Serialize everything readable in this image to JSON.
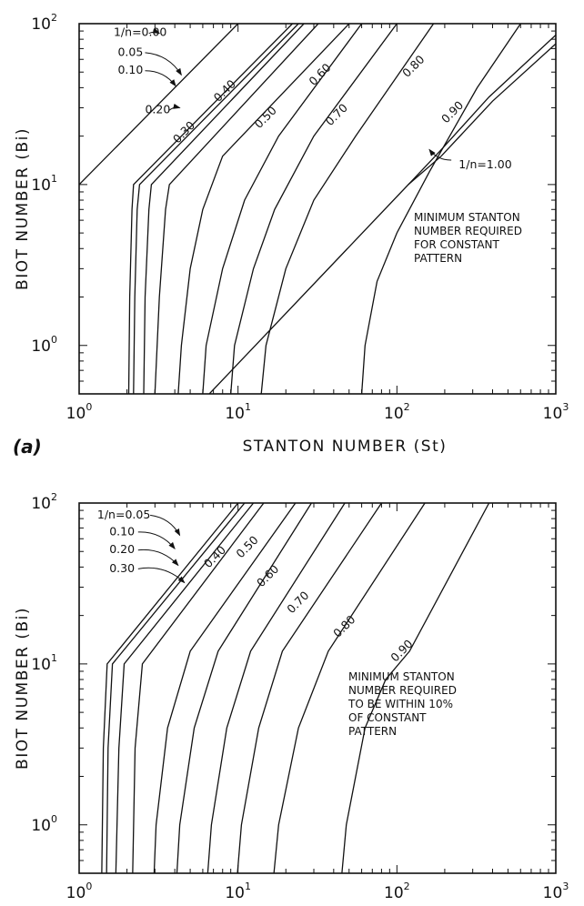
{
  "chart_data": [
    {
      "type": "line",
      "panel_label": "(a)",
      "xlabel": "STANTON NUMBER (St)",
      "ylabel": "BIOT NUMBER (Bi)",
      "xscale": "log",
      "yscale": "log",
      "xlim": [
        1,
        1000
      ],
      "ylim": [
        0.5,
        100
      ],
      "x_ticks": [
        {
          "base": "10",
          "exp": "0"
        },
        {
          "base": "10",
          "exp": "1"
        },
        {
          "base": "10",
          "exp": "2"
        },
        {
          "base": "10",
          "exp": "3"
        }
      ],
      "y_ticks": [
        {
          "base": "10",
          "exp": "0"
        },
        {
          "base": "10",
          "exp": "1"
        },
        {
          "base": "10",
          "exp": "2"
        }
      ],
      "note": [
        "MINIMUM STANTON",
        "NUMBER REQUIRED",
        "FOR CONSTANT",
        "PATTERN"
      ],
      "series": [
        {
          "name": "1/n=0.00",
          "points": [
            [
              1,
              10
            ],
            [
              10,
              100
            ]
          ]
        },
        {
          "name": "0.05",
          "points": [
            [
              2.05,
              0.5
            ],
            [
              2.08,
              2
            ],
            [
              2.15,
              7
            ],
            [
              2.2,
              10
            ],
            [
              22,
              100
            ]
          ]
        },
        {
          "name": "0.10",
          "points": [
            [
              2.2,
              0.5
            ],
            [
              2.24,
              2
            ],
            [
              2.32,
              7
            ],
            [
              2.4,
              10
            ],
            [
              24,
              100
            ]
          ]
        },
        {
          "name": "0.20",
          "points": [
            [
              2.55,
              0.5
            ],
            [
              2.6,
              2
            ],
            [
              2.75,
              7
            ],
            [
              2.85,
              10
            ],
            [
              26,
              100
            ]
          ]
        },
        {
          "name": "0.30",
          "points": [
            [
              3.0,
              0.5
            ],
            [
              3.2,
              2
            ],
            [
              3.5,
              7
            ],
            [
              3.7,
              10
            ],
            [
              32,
              100
            ]
          ]
        },
        {
          "name": "0.40",
          "points": [
            [
              4.2,
              0.5
            ],
            [
              4.4,
              1
            ],
            [
              5,
              3
            ],
            [
              6,
              7
            ],
            [
              8,
              15
            ],
            [
              50,
              100
            ]
          ]
        },
        {
          "name": "0.50",
          "points": [
            [
              6,
              0.5
            ],
            [
              6.3,
              1
            ],
            [
              8,
              3
            ],
            [
              11,
              8
            ],
            [
              18,
              20
            ],
            [
              60,
              100
            ]
          ]
        },
        {
          "name": "0.60",
          "points": [
            [
              9,
              0.5
            ],
            [
              9.5,
              1
            ],
            [
              12.5,
              3
            ],
            [
              17,
              7
            ],
            [
              30,
              20
            ],
            [
              100,
              100
            ]
          ]
        },
        {
          "name": "0.70",
          "points": [
            [
              14,
              0.5
            ],
            [
              15,
              1
            ],
            [
              20,
              3
            ],
            [
              30,
              8
            ],
            [
              55,
              20
            ],
            [
              170,
              100
            ]
          ]
        },
        {
          "name": "0.80",
          "points": [
            [
              60,
              0.5
            ],
            [
              63,
              1
            ],
            [
              75,
              2.5
            ],
            [
              100,
              5
            ],
            [
              160,
              12
            ],
            [
              320,
              40
            ],
            [
              600,
              100
            ]
          ]
        },
        {
          "name": "0.90",
          "points": [
            [
              118,
              10
            ],
            [
              185,
              16
            ],
            [
              380,
              35
            ],
            [
              1000,
              85
            ]
          ]
        },
        {
          "name": "1/n=1.00",
          "points": [
            [
              6.6,
              0.5
            ],
            [
              118,
              10
            ],
            [
              190,
              15
            ],
            [
              400,
              33
            ],
            [
              1000,
              75
            ]
          ]
        }
      ],
      "curve_labels": [
        {
          "text": "1/n=0.00",
          "at": [
            1.65,
            88
          ],
          "rotate": 0
        },
        {
          "text": "0.05",
          "at": [
            1.75,
            66
          ],
          "rotate": 0
        },
        {
          "text": "0.10",
          "at": [
            1.75,
            51
          ],
          "rotate": 0
        },
        {
          "text": "0.20",
          "at": [
            2.6,
            29
          ],
          "rotate": 0
        },
        {
          "text": "0.30",
          "at": [
            4.6,
            21
          ],
          "rotate": -45
        },
        {
          "text": "0.40",
          "at": [
            8.3,
            38
          ],
          "rotate": -45
        },
        {
          "text": "0.50",
          "at": [
            15,
            26
          ],
          "rotate": -45
        },
        {
          "text": "0.60",
          "at": [
            33,
            48
          ],
          "rotate": -45
        },
        {
          "text": "0.70",
          "at": [
            42,
            27
          ],
          "rotate": -45
        },
        {
          "text": "0.80",
          "at": [
            128,
            54
          ],
          "rotate": -45
        },
        {
          "text": "0.90",
          "at": [
            225,
            28
          ],
          "rotate": -45
        },
        {
          "text": "1/n=1.00",
          "at": [
            245,
            13.2
          ],
          "rotate": 0
        }
      ],
      "label_arrows": [
        {
          "from": [
            2.75,
            87
          ],
          "to": [
            3.2,
            87
          ]
        },
        {
          "from": [
            2.6,
            66
          ],
          "to": [
            4.4,
            48
          ]
        },
        {
          "from": [
            2.6,
            51
          ],
          "to": [
            4.05,
            41
          ]
        },
        {
          "from": [
            3.7,
            29
          ],
          "to": [
            4.3,
            30
          ]
        },
        {
          "from": [
            220,
            14.2
          ],
          "to": [
            160,
            16.5
          ]
        }
      ]
    },
    {
      "type": "line",
      "panel_label": "",
      "xlabel": "",
      "ylabel": "BIOT NUMBER (Bi)",
      "xscale": "log",
      "yscale": "log",
      "xlim": [
        1,
        1000
      ],
      "ylim": [
        0.5,
        100
      ],
      "x_ticks": [
        {
          "base": "10",
          "exp": "0"
        },
        {
          "base": "10",
          "exp": "1"
        },
        {
          "base": "10",
          "exp": "2"
        },
        {
          "base": "10",
          "exp": "3"
        }
      ],
      "y_ticks": [
        {
          "base": "10",
          "exp": "0"
        },
        {
          "base": "10",
          "exp": "1"
        },
        {
          "base": "10",
          "exp": "2"
        }
      ],
      "note": [
        "MINIMUM STANTON",
        "NUMBER REQUIRED",
        "TO BE WITHIN 10%",
        "OF CONSTANT",
        "PATTERN"
      ],
      "series": [
        {
          "name": "1/n=0.05",
          "points": [
            [
              1.38,
              0.3
            ],
            [
              1.42,
              3
            ],
            [
              1.5,
              10
            ],
            [
              10,
              100
            ]
          ]
        },
        {
          "name": "0.10",
          "points": [
            [
              1.48,
              0.3
            ],
            [
              1.52,
              3
            ],
            [
              1.62,
              10
            ],
            [
              11,
              100
            ]
          ]
        },
        {
          "name": "0.20",
          "points": [
            [
              1.68,
              0.3
            ],
            [
              1.78,
              3
            ],
            [
              1.92,
              10
            ],
            [
              12.5,
              100
            ]
          ]
        },
        {
          "name": "0.30",
          "points": [
            [
              2.15,
              0.3
            ],
            [
              2.25,
              3
            ],
            [
              2.5,
              10
            ],
            [
              14.5,
              100
            ]
          ]
        },
        {
          "name": "0.40",
          "points": [
            [
              2.9,
              0.3
            ],
            [
              3.05,
              1
            ],
            [
              3.6,
              4
            ],
            [
              5,
              12
            ],
            [
              23,
              100
            ]
          ]
        },
        {
          "name": "0.50",
          "points": [
            [
              4.0,
              0.3
            ],
            [
              4.3,
              1
            ],
            [
              5.3,
              4
            ],
            [
              7.5,
              12
            ],
            [
              29,
              100
            ]
          ]
        },
        {
          "name": "0.60",
          "points": [
            [
              6.2,
              0.3
            ],
            [
              6.8,
              1
            ],
            [
              8.5,
              4
            ],
            [
              12,
              12
            ],
            [
              47,
              100
            ]
          ]
        },
        {
          "name": "0.70",
          "points": [
            [
              9.5,
              0.3
            ],
            [
              10.5,
              1
            ],
            [
              13.5,
              4
            ],
            [
              19,
              12
            ],
            [
              80,
              100
            ]
          ]
        },
        {
          "name": "0.80",
          "points": [
            [
              16,
              0.3
            ],
            [
              18,
              1
            ],
            [
              24,
              4
            ],
            [
              37,
              12
            ],
            [
              150,
              100
            ]
          ]
        },
        {
          "name": "0.90",
          "points": [
            [
              43,
              0.3
            ],
            [
              48,
              1
            ],
            [
              63,
              4
            ],
            [
              85,
              8
            ],
            [
              120,
              12
            ],
            [
              380,
              100
            ]
          ]
        }
      ],
      "curve_labels": [
        {
          "text": "1/n=0.05",
          "at": [
            1.3,
            84
          ],
          "rotate": 0
        },
        {
          "text": "0.10",
          "at": [
            1.55,
            66
          ],
          "rotate": 0
        },
        {
          "text": "0.20",
          "at": [
            1.55,
            51
          ],
          "rotate": 0
        },
        {
          "text": "0.30",
          "at": [
            1.55,
            39
          ],
          "rotate": 0
        },
        {
          "text": "0.40",
          "at": [
            7.2,
            46
          ],
          "rotate": -45
        },
        {
          "text": "0.50",
          "at": [
            11.5,
            53
          ],
          "rotate": -45
        },
        {
          "text": "0.60",
          "at": [
            15.5,
            35
          ],
          "rotate": -45
        },
        {
          "text": "0.70",
          "at": [
            24,
            24
          ],
          "rotate": -45
        },
        {
          "text": "0.80",
          "at": [
            47,
            17
          ],
          "rotate": -45
        },
        {
          "text": "0.90",
          "at": [
            108,
            12
          ],
          "rotate": -45
        }
      ],
      "label_arrows": [
        {
          "from": [
            2.8,
            84
          ],
          "to": [
            4.3,
            63
          ]
        },
        {
          "from": [
            2.35,
            66
          ],
          "to": [
            4.0,
            52
          ]
        },
        {
          "from": [
            2.35,
            51
          ],
          "to": [
            4.2,
            41
          ]
        },
        {
          "from": [
            2.35,
            39
          ],
          "to": [
            4.6,
            32
          ]
        }
      ]
    }
  ]
}
